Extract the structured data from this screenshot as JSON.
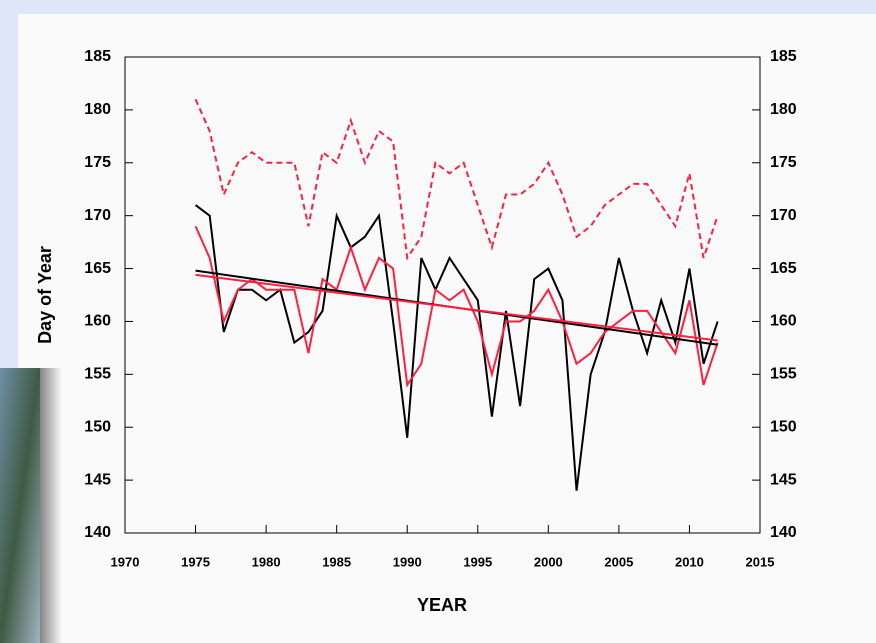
{
  "chart_data": {
    "type": "line",
    "xlabel": "YEAR",
    "ylabel": "Day of Year",
    "x": [
      1975,
      1976,
      1977,
      1978,
      1979,
      1980,
      1981,
      1982,
      1983,
      1984,
      1985,
      1986,
      1987,
      1988,
      1989,
      1990,
      1991,
      1992,
      1993,
      1994,
      1995,
      1996,
      1997,
      1998,
      1999,
      2000,
      2001,
      2002,
      2003,
      2004,
      2005,
      2006,
      2007,
      2008,
      2009,
      2010,
      2011,
      2012
    ],
    "series": [
      {
        "color": "#ff2040",
        "dashed": true,
        "values": [
          181,
          178,
          172,
          175,
          176,
          175,
          175,
          175,
          169,
          176,
          175,
          179,
          175,
          178,
          177,
          166,
          168,
          175,
          174,
          175,
          171,
          167,
          172,
          172,
          173,
          175,
          172,
          168,
          169,
          171,
          172,
          173,
          173,
          171,
          169,
          174,
          166,
          170
        ]
      },
      {
        "color": "#000000",
        "dashed": false,
        "values": [
          171,
          170,
          159,
          163,
          163,
          162,
          163,
          158,
          159,
          161,
          170,
          167,
          168,
          170,
          160,
          149,
          166,
          163,
          166,
          164,
          162,
          151,
          161,
          152,
          164,
          165,
          162,
          144,
          155,
          159,
          166,
          161,
          157,
          162,
          158,
          165,
          156,
          160
        ]
      },
      {
        "color": "#ff2040",
        "dashed": false,
        "values": [
          169,
          166,
          160,
          163,
          164,
          163,
          163,
          163,
          157,
          164,
          163,
          167,
          163,
          166,
          165,
          154,
          156,
          163,
          162,
          163,
          160,
          155,
          160,
          160,
          161,
          163,
          160,
          156,
          157,
          159,
          160,
          161,
          161,
          159,
          157,
          162,
          154,
          158
        ]
      },
      {
        "color": "#000000",
        "dashed": false,
        "x": [
          1975,
          2012
        ],
        "values": [
          164.8,
          157.8
        ]
      },
      {
        "color": "#ff2040",
        "dashed": false,
        "x": [
          1975,
          2012
        ],
        "values": [
          164.4,
          158.2
        ]
      }
    ],
    "xlim": [
      1970,
      2015
    ],
    "xticks": [
      1970,
      1975,
      1980,
      1985,
      1990,
      1995,
      2000,
      2005,
      2010,
      2015
    ],
    "ylim": [
      140,
      185
    ],
    "yticks": [
      140,
      145,
      150,
      155,
      160,
      165,
      170,
      175,
      180,
      185
    ],
    "y2lim": [
      140,
      185
    ],
    "y2ticks": [
      140,
      145,
      150,
      155,
      160,
      165,
      170,
      175,
      180,
      185
    ]
  }
}
